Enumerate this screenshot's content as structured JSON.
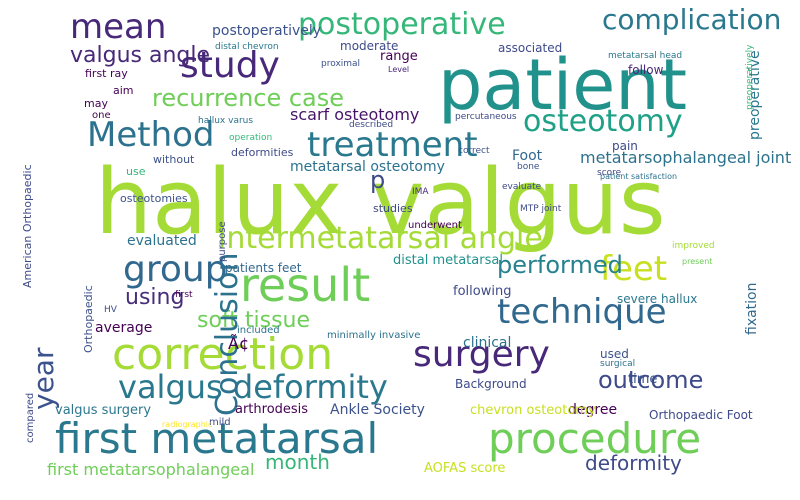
{
  "words": [
    {
      "text": "halux valgus",
      "color": "#a5db36"
    },
    {
      "text": "patient",
      "color": "#21918c"
    },
    {
      "text": "first metatarsal",
      "color": "#2a788e"
    },
    {
      "text": "procedure",
      "color": "#6ece58"
    },
    {
      "text": "correction",
      "color": "#a5db36"
    },
    {
      "text": "surgery",
      "color": "#482878"
    },
    {
      "text": "result",
      "color": "#6ece58"
    },
    {
      "text": "technique",
      "color": "#31688e"
    },
    {
      "text": "treatment",
      "color": "#2a788e"
    },
    {
      "text": "valgus deformity",
      "color": "#2a788e"
    },
    {
      "text": "group",
      "color": "#31688e"
    },
    {
      "text": "feet",
      "color": "#c8e020"
    },
    {
      "text": "osteotomy",
      "color": "#1fa187"
    },
    {
      "text": "Method",
      "color": "#2c728e"
    },
    {
      "text": "study",
      "color": "#482878"
    },
    {
      "text": "intermetatarsal angle",
      "color": "#a5db36"
    },
    {
      "text": "postoperative",
      "color": "#35b779"
    },
    {
      "text": "complication",
      "color": "#2a788e"
    },
    {
      "text": "mean",
      "color": "#482878"
    },
    {
      "text": "performed",
      "color": "#26828e"
    },
    {
      "text": "recurrence case",
      "color": "#6ece58"
    },
    {
      "text": "outcome",
      "color": "#3e4a89"
    },
    {
      "text": "deformity",
      "color": "#3e4a89"
    },
    {
      "text": "valgus angle",
      "color": "#482878"
    },
    {
      "text": "using",
      "color": "#472d7b"
    },
    {
      "text": "month",
      "color": "#35b779"
    },
    {
      "text": "soft tissue",
      "color": "#6ece58"
    },
    {
      "text": "Conclusion",
      "color": "#2c728e"
    },
    {
      "text": "year",
      "color": "#3b528b"
    },
    {
      "text": "p",
      "color": "#3e4a89"
    },
    {
      "text": "Ã¢",
      "color": "#440154"
    },
    {
      "text": "metatarsophalangeal joint",
      "color": "#2c728e"
    },
    {
      "text": "scarf osteotomy",
      "color": "#481467"
    },
    {
      "text": "metatarsal osteotomy",
      "color": "#2c728e"
    },
    {
      "text": "first metatarsophalangeal",
      "color": "#6ece58"
    },
    {
      "text": "Ankle Society",
      "color": "#3b528b"
    },
    {
      "text": "degree",
      "color": "#440154"
    },
    {
      "text": "clinical",
      "color": "#2c728e"
    },
    {
      "text": "arthrodesis",
      "color": "#440154"
    },
    {
      "text": "valgus surgery",
      "color": "#2a788e"
    },
    {
      "text": "evaluated",
      "color": "#2c728e"
    },
    {
      "text": "average",
      "color": "#440154"
    },
    {
      "text": "preoperative",
      "color": "#2a788e"
    },
    {
      "text": "Foot",
      "color": "#31688e"
    },
    {
      "text": "pain",
      "color": "#3e4a89"
    },
    {
      "text": "time",
      "color": "#3b528b"
    },
    {
      "text": "used",
      "color": "#3b528b"
    },
    {
      "text": "fixation",
      "color": "#31688e"
    },
    {
      "text": "severe hallux",
      "color": "#2a788e"
    },
    {
      "text": "following",
      "color": "#3e4a89"
    },
    {
      "text": "distal metatarsal",
      "color": "#21918c"
    },
    {
      "text": "patients feet",
      "color": "#31688e"
    },
    {
      "text": "chevron osteotomy",
      "color": "#c8e020"
    },
    {
      "text": "Background",
      "color": "#3e4a89"
    },
    {
      "text": "AOFAS score",
      "color": "#c8e020"
    },
    {
      "text": "Orthopaedic Foot",
      "color": "#3e4a89"
    },
    {
      "text": "postoperatively",
      "color": "#3b528b"
    },
    {
      "text": "moderate",
      "color": "#3e4a89"
    },
    {
      "text": "range",
      "color": "#440154"
    },
    {
      "text": "associated",
      "color": "#3e4a89"
    },
    {
      "text": "follow",
      "color": "#482878"
    },
    {
      "text": "metatarsal head",
      "color": "#2a788e"
    },
    {
      "text": "distal chevron",
      "color": "#2a788e"
    },
    {
      "text": "first ray",
      "color": "#440154"
    },
    {
      "text": "proximal",
      "color": "#3b528b"
    },
    {
      "text": "Level",
      "color": "#482878"
    },
    {
      "text": "aim",
      "color": "#440154"
    },
    {
      "text": "may",
      "color": "#440154"
    },
    {
      "text": "one",
      "color": "#440154"
    },
    {
      "text": "hallux varus",
      "color": "#2c728e"
    },
    {
      "text": "described",
      "color": "#3e4a89"
    },
    {
      "text": "percutaneous",
      "color": "#3e4a89"
    },
    {
      "text": "operation",
      "color": "#35b779"
    },
    {
      "text": "deformities",
      "color": "#3e4a89"
    },
    {
      "text": "without",
      "color": "#3b528b"
    },
    {
      "text": "use",
      "color": "#35b779"
    },
    {
      "text": "osteotomies",
      "color": "#3b528b"
    },
    {
      "text": "Orthopaedic",
      "color": "#3b528b"
    },
    {
      "text": "American Orthopaedic",
      "color": "#3e4a89"
    },
    {
      "text": "purpose",
      "color": "#3e4a89"
    },
    {
      "text": "studies",
      "color": "#3e4a89"
    },
    {
      "text": "underwent",
      "color": "#440154"
    },
    {
      "text": "MTP joint",
      "color": "#3e4a89"
    },
    {
      "text": "IMA",
      "color": "#472d7b"
    },
    {
      "text": "correct",
      "color": "#3b528b"
    },
    {
      "text": "bone",
      "color": "#3b528b"
    },
    {
      "text": "score",
      "color": "#3e4a89"
    },
    {
      "text": "evaluate",
      "color": "#3e4a89"
    },
    {
      "text": "patient satisfaction",
      "color": "#2c728e"
    },
    {
      "text": "preoperatively",
      "color": "#35b779"
    },
    {
      "text": "improved",
      "color": "#a5db36"
    },
    {
      "text": "present",
      "color": "#6ece58"
    },
    {
      "text": "included",
      "color": "#2c728e"
    },
    {
      "text": "minimally invasive",
      "color": "#2c728e"
    },
    {
      "text": "surgical",
      "color": "#2c728e"
    },
    {
      "text": "first",
      "color": "#440154"
    },
    {
      "text": "HV",
      "color": "#3e4a89"
    },
    {
      "text": "mild",
      "color": "#3e4a89"
    },
    {
      "text": "radiographic",
      "color": "#fde725"
    },
    {
      "text": "compared",
      "color": "#3e4a89"
    }
  ]
}
